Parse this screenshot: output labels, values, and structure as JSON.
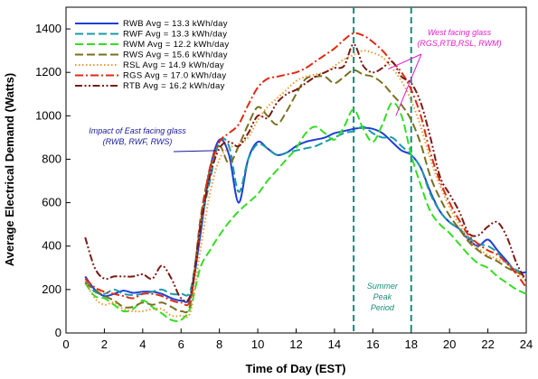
{
  "chart_data": {
    "type": "line",
    "title": "",
    "xlabel": "Time of Day (EST)",
    "ylabel": "Average Electrical Demand (Watts)",
    "xlim": [
      0,
      24
    ],
    "ylim": [
      0,
      1500
    ],
    "xticks": [
      0,
      2,
      4,
      6,
      8,
      10,
      12,
      14,
      16,
      18,
      20,
      22,
      24
    ],
    "yticks": [
      0,
      200,
      400,
      600,
      800,
      1000,
      1200,
      1400
    ],
    "grid": false,
    "legend_position": "top-left",
    "x": [
      1,
      1.5,
      2,
      2.5,
      3,
      3.5,
      4,
      4.5,
      5,
      5.5,
      6,
      6.5,
      7,
      7.5,
      8,
      8.5,
      9,
      9.5,
      10,
      10.5,
      11,
      11.5,
      12,
      12.5,
      13,
      13.5,
      14,
      14.5,
      15,
      15.5,
      16,
      16.5,
      17,
      17.5,
      18,
      18.5,
      19,
      19.5,
      20,
      20.5,
      21,
      21.5,
      22,
      22.5,
      23,
      23.5,
      24
    ],
    "series": [
      {
        "name": "RWB Avg = 13.3 kWh/day",
        "color": "#1f3fd6",
        "style": "solid",
        "values": [
          260,
          200,
          170,
          180,
          195,
          185,
          190,
          190,
          180,
          160,
          150,
          170,
          450,
          750,
          890,
          820,
          600,
          800,
          880,
          850,
          820,
          830,
          860,
          880,
          890,
          900,
          920,
          930,
          940,
          945,
          940,
          920,
          880,
          840,
          820,
          760,
          650,
          560,
          510,
          480,
          430,
          400,
          430,
          380,
          330,
          280,
          280
        ]
      },
      {
        "name": "RWF Avg = 13.3 kWh/day",
        "color": "#1a9aa8",
        "style": "dashed",
        "values": [
          240,
          190,
          180,
          200,
          180,
          175,
          180,
          190,
          200,
          180,
          180,
          200,
          480,
          700,
          880,
          860,
          650,
          800,
          870,
          850,
          820,
          830,
          840,
          850,
          860,
          880,
          900,
          920,
          930,
          950,
          920,
          900,
          900,
          860,
          820,
          760,
          640,
          560,
          510,
          480,
          440,
          410,
          400,
          370,
          320,
          290,
          270
        ]
      },
      {
        "name": "RWM Avg = 12.2 kWh/day",
        "color": "#33dd22",
        "style": "dashed",
        "values": [
          230,
          170,
          160,
          130,
          100,
          110,
          150,
          120,
          90,
          60,
          60,
          120,
          300,
          380,
          450,
          510,
          560,
          600,
          640,
          700,
          750,
          800,
          850,
          920,
          950,
          920,
          890,
          950,
          1030,
          940,
          880,
          960,
          1060,
          1000,
          820,
          680,
          560,
          500,
          460,
          410,
          360,
          320,
          300,
          260,
          230,
          200,
          180
        ]
      },
      {
        "name": "RWS Avg = 15.6 kWh/day",
        "color": "#7a7020",
        "style": "dashed",
        "values": [
          230,
          200,
          170,
          150,
          120,
          120,
          140,
          130,
          140,
          120,
          100,
          140,
          520,
          750,
          860,
          780,
          860,
          960,
          1040,
          1000,
          960,
          1020,
          1100,
          1170,
          1180,
          1180,
          1150,
          1180,
          1210,
          1190,
          1180,
          1150,
          1100,
          1050,
          980,
          870,
          720,
          620,
          540,
          480,
          420,
          380,
          350,
          330,
          300,
          280,
          260
        ]
      },
      {
        "name": "RSL Avg = 14.9 kWh/day",
        "color": "#e89a33",
        "style": "dotted",
        "values": [
          240,
          160,
          130,
          140,
          110,
          100,
          100,
          110,
          110,
          80,
          80,
          100,
          380,
          640,
          800,
          850,
          870,
          900,
          980,
          1040,
          1080,
          1120,
          1160,
          1180,
          1190,
          1200,
          1230,
          1260,
          1280,
          1300,
          1290,
          1270,
          1220,
          1160,
          1070,
          950,
          800,
          680,
          580,
          500,
          430,
          390,
          360,
          340,
          320,
          280,
          240
        ]
      },
      {
        "name": "RGS Avg = 17.0 kWh/day",
        "color": "#e02a12",
        "style": "dashdot",
        "values": [
          250,
          210,
          190,
          180,
          170,
          160,
          180,
          180,
          170,
          150,
          140,
          160,
          500,
          760,
          880,
          920,
          960,
          1050,
          1130,
          1170,
          1180,
          1190,
          1200,
          1220,
          1250,
          1280,
          1310,
          1350,
          1380,
          1370,
          1340,
          1300,
          1250,
          1200,
          1120,
          1000,
          830,
          700,
          600,
          520,
          450,
          410,
          380,
          360,
          320,
          270,
          210
        ]
      },
      {
        "name": "RTB Avg = 16.2 kWh/day",
        "color": "#7a1a14",
        "style": "dashdotdot",
        "values": [
          440,
          300,
          250,
          260,
          260,
          260,
          270,
          250,
          310,
          250,
          160,
          180,
          480,
          720,
          850,
          880,
          860,
          920,
          1000,
          990,
          1060,
          1100,
          1120,
          1150,
          1180,
          1200,
          1220,
          1230,
          1330,
          1230,
          1200,
          1220,
          1250,
          1180,
          1150,
          1060,
          900,
          720,
          640,
          560,
          460,
          450,
          490,
          510,
          440,
          320,
          240
        ]
      }
    ],
    "vlines": [
      {
        "x": 15,
        "color": "#1a8a7a"
      },
      {
        "x": 18,
        "color": "#1a8a7a"
      }
    ],
    "annotations": {
      "east": {
        "lines": [
          "Impact of East facing glass",
          "(RWB, RWF, RWS)"
        ],
        "color": "#1a1a9a",
        "points_to_x": 7.8,
        "points_to_y": 840
      },
      "west": {
        "lines": [
          "West facing glass",
          "(RGS,RTB,RSL, RWM)"
        ],
        "color": "#e020c8",
        "points_to_x": [
          16.8,
          17.2
        ],
        "points_to_y": [
          1215,
          1000
        ]
      },
      "peak": {
        "lines": [
          "Summer",
          "Peak",
          "Period"
        ],
        "color": "#1a8a7a"
      }
    }
  }
}
